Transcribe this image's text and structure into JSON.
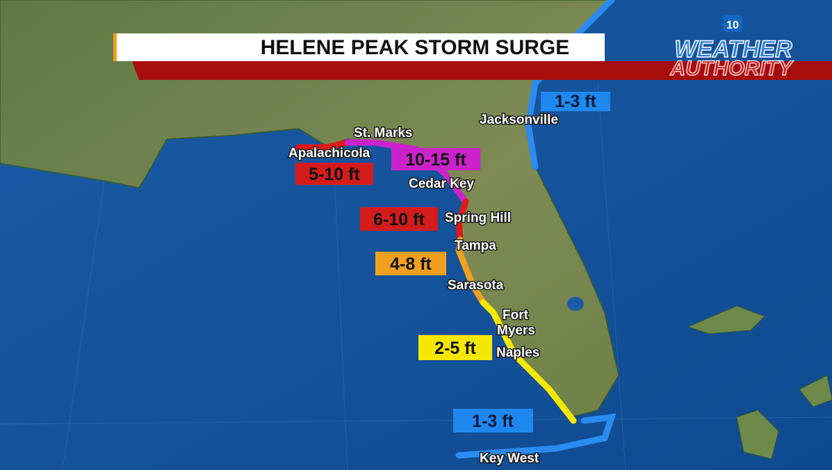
{
  "header": {
    "title": "HELENE PEAK STORM SURGE"
  },
  "logo": {
    "station": "10",
    "line1": "WEATHER",
    "line2": "AUTHORITY"
  },
  "cities": [
    {
      "label": "Jacksonville"
    },
    {
      "label": "St. Marks"
    },
    {
      "label": "Apalachicola"
    },
    {
      "label": "Cedar Key"
    },
    {
      "label": "Spring Hill"
    },
    {
      "label": "Tampa"
    },
    {
      "label": "Sarasota"
    },
    {
      "label": "Fort"
    },
    {
      "label": "Myers"
    },
    {
      "label": "Naples"
    },
    {
      "label": "Key West"
    }
  ],
  "surge_labels": [
    {
      "label": "1-3 ft"
    },
    {
      "label": "10-15 ft"
    },
    {
      "label": "5-10 ft"
    },
    {
      "label": "6-10 ft"
    },
    {
      "label": "4-8 ft"
    },
    {
      "label": "2-5 ft"
    },
    {
      "label": "1-3 ft"
    }
  ]
}
